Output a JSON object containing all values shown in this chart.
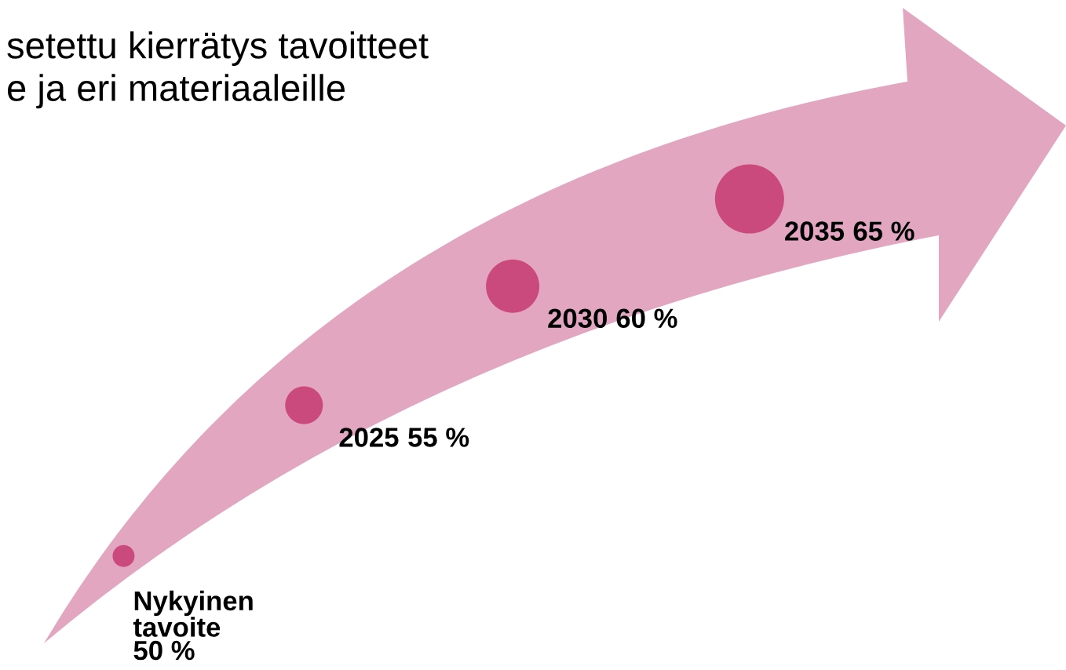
{
  "chart_data": {
    "type": "other",
    "title": "setettu kierrätys tavoitteet\ne ja eri materiaaleille",
    "categories": [
      "Nykyinen\ntavoite",
      "2025",
      "2030",
      "2035"
    ],
    "values": [
      50,
      55,
      60,
      65
    ],
    "value_labels": [
      "50 %",
      "55 %",
      "60 %",
      "65 %"
    ],
    "color": "#c9447a"
  }
}
